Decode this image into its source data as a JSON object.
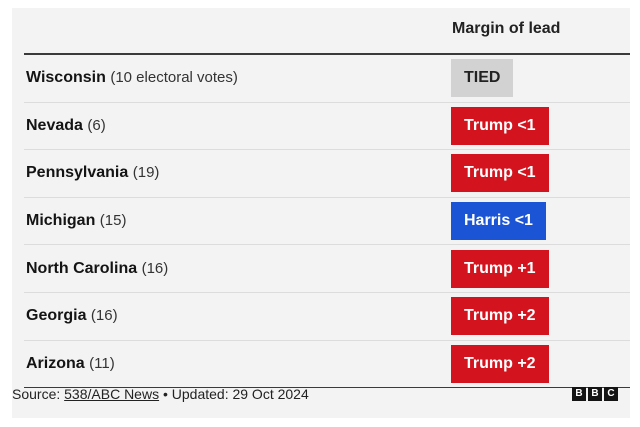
{
  "chart_data": {
    "type": "table",
    "column_header": "Margin of lead",
    "rows": [
      {
        "state": "Wisconsin",
        "votes": "(10 electoral votes)",
        "lead": "TIED",
        "party": "tied"
      },
      {
        "state": "Nevada",
        "votes": "(6)",
        "lead": "Trump <1",
        "party": "trump"
      },
      {
        "state": "Pennsylvania",
        "votes": "(19)",
        "lead": "Trump <1",
        "party": "trump"
      },
      {
        "state": "Michigan",
        "votes": "(15)",
        "lead": "Harris <1",
        "party": "harris"
      },
      {
        "state": "North Carolina",
        "votes": "(16)",
        "lead": "Trump +1",
        "party": "trump"
      },
      {
        "state": "Georgia",
        "votes": "(16)",
        "lead": "Trump +2",
        "party": "trump"
      },
      {
        "state": "Arizona",
        "votes": "(11)",
        "lead": "Trump +2",
        "party": "trump"
      }
    ],
    "colors": {
      "tied": "#d2d2d2",
      "trump": "#d3141e",
      "harris": "#1b55d6"
    }
  },
  "footer": {
    "source_prefix": "Source: ",
    "source_link": "538/ABC News",
    "updated": " • Updated: 29 Oct 2024",
    "logo": [
      "B",
      "B",
      "C"
    ]
  }
}
